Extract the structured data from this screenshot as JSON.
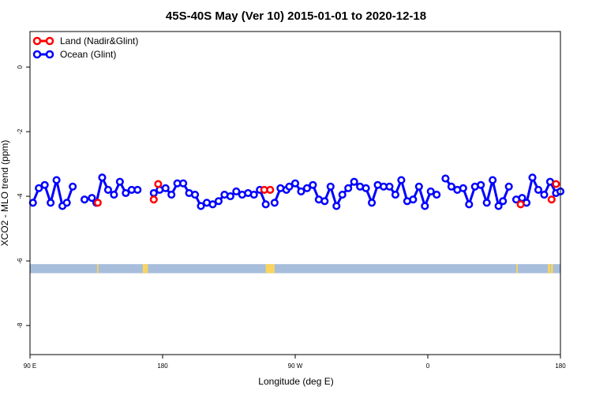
{
  "chart_data": {
    "type": "line",
    "title": "45S-40S May (Ver 10)   2015-01-01 to 2020-12-18",
    "xlabel": "Longitude (deg E)",
    "ylabel": "XCO2 - MLO trend (ppm)",
    "xlim": [
      90,
      450
    ],
    "ylim": [
      -8.9,
      1.1
    ],
    "x_ticks": [
      {
        "value": 90,
        "label": "90 E"
      },
      {
        "value": 180,
        "label": "180"
      },
      {
        "value": 270,
        "label": "90 W"
      },
      {
        "value": 360,
        "label": "0"
      },
      {
        "value": 450,
        "label": "180"
      }
    ],
    "y_ticks": [
      0,
      -2,
      -4,
      -6,
      -8
    ],
    "legend_position": "top-left",
    "series": [
      {
        "name": "Land (Nadir&Glint)",
        "color": "#ff0000",
        "points": [
          [
            136,
            -4.2
          ],
          [
            174,
            -4.1
          ],
          [
            177,
            -3.62
          ],
          [
            249,
            -3.8
          ],
          [
            253,
            -3.8
          ],
          [
            423,
            -4.25
          ],
          [
            444,
            -4.1
          ],
          [
            447,
            -3.62
          ]
        ]
      },
      {
        "name": "Ocean (Glint)",
        "color": "#0000ff",
        "segments": [
          [
            [
              92,
              -4.2
            ],
            [
              96,
              -3.75
            ],
            [
              100,
              -3.65
            ],
            [
              104,
              -4.2
            ],
            [
              108,
              -3.5
            ],
            [
              112,
              -4.3
            ],
            [
              115,
              -4.2
            ],
            [
              119,
              -3.7
            ]
          ],
          [
            [
              127,
              -4.1
            ],
            [
              132,
              -4.05
            ],
            [
              135,
              -4.2
            ],
            [
              139,
              -3.42
            ],
            [
              143,
              -3.8
            ],
            [
              147,
              -3.95
            ],
            [
              151,
              -3.55
            ],
            [
              155,
              -3.9
            ],
            [
              159,
              -3.8
            ],
            [
              163,
              -3.8
            ]
          ],
          [
            [
              174,
              -3.9
            ],
            [
              178,
              -3.8
            ],
            [
              182,
              -3.75
            ],
            [
              186,
              -3.95
            ],
            [
              190,
              -3.6
            ],
            [
              194,
              -3.6
            ],
            [
              198,
              -3.9
            ],
            [
              202,
              -3.95
            ],
            [
              206,
              -4.3
            ],
            [
              210,
              -4.2
            ],
            [
              214,
              -4.25
            ],
            [
              218,
              -4.15
            ],
            [
              222,
              -3.95
            ],
            [
              226,
              -4.0
            ],
            [
              230,
              -3.85
            ],
            [
              234,
              -3.95
            ],
            [
              238,
              -3.9
            ],
            [
              242,
              -3.95
            ],
            [
              246,
              -3.8
            ],
            [
              250,
              -4.25
            ]
          ],
          [
            [
              256,
              -4.2
            ],
            [
              260,
              -3.75
            ],
            [
              264,
              -3.8
            ]
          ],
          [
            [
              266,
              -3.7
            ],
            [
              270,
              -3.6
            ],
            [
              274,
              -3.85
            ],
            [
              278,
              -3.75
            ],
            [
              282,
              -3.65
            ],
            [
              286,
              -4.1
            ],
            [
              290,
              -4.15
            ],
            [
              294,
              -3.7
            ],
            [
              298,
              -4.3
            ],
            [
              302,
              -3.95
            ],
            [
              306,
              -3.75
            ],
            [
              310,
              -3.55
            ],
            [
              314,
              -3.7
            ],
            [
              318,
              -3.75
            ],
            [
              322,
              -4.2
            ],
            [
              326,
              -3.65
            ],
            [
              330,
              -3.7
            ],
            [
              334,
              -3.7
            ],
            [
              338,
              -3.95
            ],
            [
              342,
              -3.5
            ],
            [
              346,
              -4.15
            ],
            [
              350,
              -4.1
            ],
            [
              354,
              -3.7
            ],
            [
              358,
              -4.3
            ],
            [
              362,
              -3.85
            ],
            [
              366,
              -3.95
            ]
          ],
          [
            [
              372,
              -3.45
            ],
            [
              376,
              -3.7
            ],
            [
              380,
              -3.8
            ],
            [
              384,
              -3.75
            ],
            [
              388,
              -4.25
            ],
            [
              392,
              -3.7
            ],
            [
              396,
              -3.65
            ],
            [
              400,
              -4.2
            ],
            [
              404,
              -3.5
            ],
            [
              408,
              -4.3
            ],
            [
              411,
              -4.15
            ],
            [
              415,
              -3.7
            ]
          ],
          [
            [
              420,
              -4.1
            ],
            [
              424,
              -4.05
            ],
            [
              427,
              -4.2
            ],
            [
              431,
              -3.42
            ],
            [
              435,
              -3.8
            ],
            [
              439,
              -3.95
            ],
            [
              443,
              -3.55
            ],
            [
              447,
              -3.9
            ],
            [
              450,
              -3.85
            ]
          ]
        ]
      }
    ],
    "land_ocean_band": {
      "y_top": -6.1,
      "y_bottom": -6.38,
      "ocean_color": "#a6bddb",
      "land_color": "#f9d55f",
      "land_ranges": [
        [
          135.5,
          136.5
        ],
        [
          166.5,
          169
        ],
        [
          169,
          170
        ],
        [
          250,
          256
        ],
        [
          420,
          421
        ],
        [
          441.5,
          443
        ],
        [
          443.5,
          445
        ]
      ]
    }
  }
}
